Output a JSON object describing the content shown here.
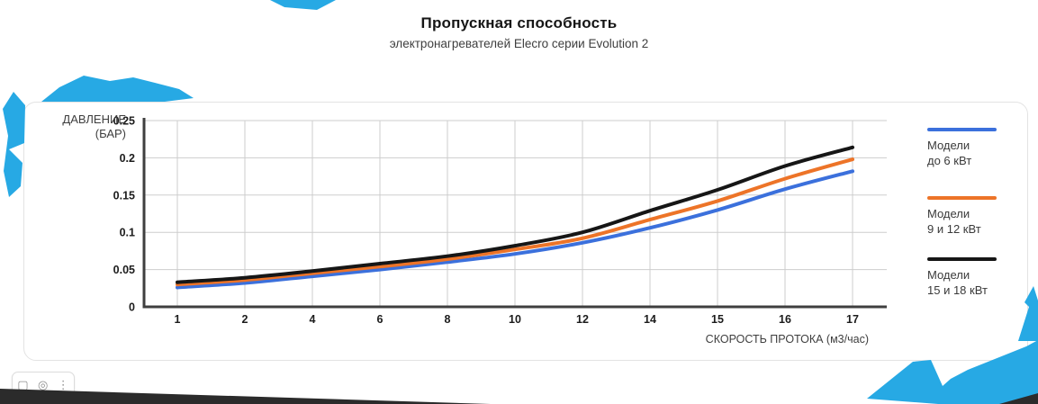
{
  "page": {
    "title": "Пропускная способность",
    "subtitle": "электронагревателей Elecro серии Evolution 2"
  },
  "chart_data": {
    "type": "line",
    "title": "Пропускная способность",
    "subtitle": "электронагревателей Elecro серии Evolution 2",
    "xlabel": "СКОРОСТЬ ПРОТОКА (м3/час)",
    "ylabel": "ДАВЛЕНИЕ (БАР)",
    "ylabel_lines": [
      "ДАВЛЕНИЕ",
      "(БАР)"
    ],
    "categories": [
      "1",
      "2",
      "4",
      "6",
      "8",
      "10",
      "12",
      "14",
      "15",
      "16",
      "17"
    ],
    "y_tick_labels": [
      "0",
      "0.05",
      "0.1",
      "0.15",
      "0.2",
      "0.25"
    ],
    "ylim": [
      0,
      0.25
    ],
    "grid": true,
    "legend_position": "right",
    "series": [
      {
        "name": "Модели до 6 кВт",
        "legend_lines": [
          "Модели",
          "до 6 кВт"
        ],
        "color": "#3B70DC",
        "values": [
          0.026,
          0.032,
          0.041,
          0.05,
          0.06,
          0.071,
          0.086,
          0.106,
          0.13,
          0.158,
          0.182
        ]
      },
      {
        "name": "Модели 9 и 12 кВт",
        "legend_lines": [
          "Модели",
          "9 и 12 кВт"
        ],
        "color": "#ED7428",
        "values": [
          0.03,
          0.036,
          0.045,
          0.054,
          0.064,
          0.077,
          0.092,
          0.117,
          0.142,
          0.172,
          0.198
        ]
      },
      {
        "name": "Модели 15 и 18 кВт",
        "legend_lines": [
          "Модели",
          "15 и 18 кВт"
        ],
        "color": "#161616",
        "values": [
          0.033,
          0.039,
          0.048,
          0.058,
          0.068,
          0.082,
          0.1,
          0.129,
          0.157,
          0.189,
          0.214
        ]
      }
    ]
  },
  "floating_toolbar": {
    "icons": [
      {
        "name": "page-icon",
        "glyph": "▢"
      },
      {
        "name": "target-icon",
        "glyph": "◎"
      },
      {
        "name": "kebab-menu-icon",
        "glyph": "⋮"
      }
    ]
  },
  "colors": {
    "accent_cyan": "#27A9E4",
    "dark_band": "#2B2B2B",
    "gridline": "#CDCDCD",
    "axis": "#3F3F3F"
  }
}
